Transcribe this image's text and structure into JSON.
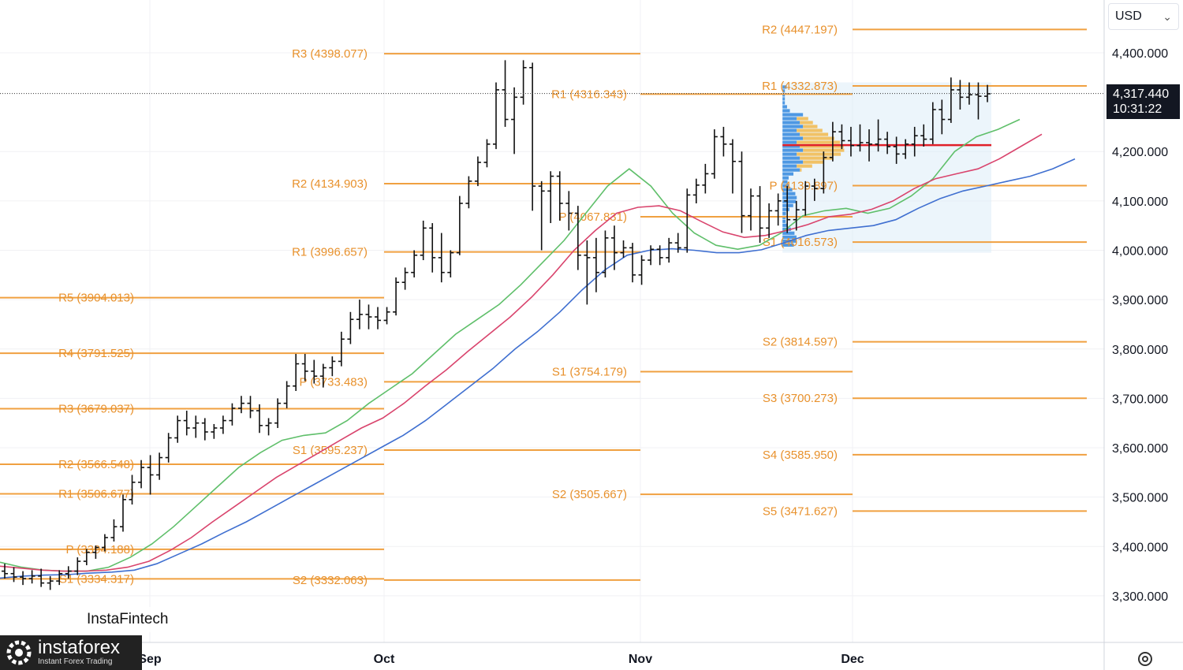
{
  "toolbar": {
    "currency": "USD"
  },
  "price_tag": {
    "price": "4,317.440",
    "countdown": "10:31:22"
  },
  "watermarks": {
    "chart_brand": "InstaFintech",
    "logo_text": "instaforex",
    "logo_tagline": "Instant Forex Trading"
  },
  "chart_data": {
    "type": "bar",
    "title": "",
    "xlabel": "",
    "ylabel": "",
    "ylim": [
      3260,
      4490
    ],
    "y_ticks": [
      {
        "value": 3300,
        "label": "3,300.000"
      },
      {
        "value": 3400,
        "label": "3,400.000"
      },
      {
        "value": 3500,
        "label": "3,500.000"
      },
      {
        "value": 3600,
        "label": "3,600.000"
      },
      {
        "value": 3700,
        "label": "3,700.000"
      },
      {
        "value": 3800,
        "label": "3,800.000"
      },
      {
        "value": 3900,
        "label": "3,900.000"
      },
      {
        "value": 4000,
        "label": "4,000.000"
      },
      {
        "value": 4100,
        "label": "4,100.000"
      },
      {
        "value": 4200,
        "label": "4,200.000"
      },
      {
        "value": 4400,
        "label": "4,400.000"
      }
    ],
    "x_ticks": [
      "Sep",
      "Oct",
      "Nov",
      "Dec"
    ],
    "current_price": 4317.44,
    "pivot_periods": [
      {
        "period": "Sep",
        "levels": [
          {
            "name": "R5",
            "value": 3904.013,
            "label": "R5 (3904.013)"
          },
          {
            "name": "R4",
            "value": 3791.525,
            "label": "R4 (3791.525)"
          },
          {
            "name": "R3",
            "value": 3679.037,
            "label": "R3 (3679.037)"
          },
          {
            "name": "R2",
            "value": 3566.548,
            "label": "R2 (3566.548)"
          },
          {
            "name": "R1",
            "value": 3506.677,
            "label": "R1 (3506.677)"
          },
          {
            "name": "P",
            "value": 3394.188,
            "label": "P (3394.188)"
          },
          {
            "name": "S1",
            "value": 3334.317,
            "label": "S1 (3334.317)"
          }
        ]
      },
      {
        "period": "Oct",
        "levels": [
          {
            "name": "R3",
            "value": 4398.077,
            "label": "R3 (4398.077)"
          },
          {
            "name": "R2",
            "value": 4134.903,
            "label": "R2 (4134.903)"
          },
          {
            "name": "R1",
            "value": 3996.657,
            "label": "R1 (3996.657)"
          },
          {
            "name": "P",
            "value": 3733.483,
            "label": "P (3733.483)"
          },
          {
            "name": "S1",
            "value": 3595.237,
            "label": "S1 (3595.237)"
          },
          {
            "name": "S2",
            "value": 3332.063,
            "label": "S2 (3332.063)"
          }
        ]
      },
      {
        "period": "Nov",
        "levels": [
          {
            "name": "R1",
            "value": 4316.343,
            "label": "R1 (4316.343)"
          },
          {
            "name": "P",
            "value": 4067.831,
            "label": "P (4067.831)"
          },
          {
            "name": "S1",
            "value": 3754.179,
            "label": "S1 (3754.179)"
          },
          {
            "name": "S2",
            "value": 3505.667,
            "label": "S2 (3505.667)"
          }
        ]
      },
      {
        "period": "Dec",
        "levels": [
          {
            "name": "R2",
            "value": 4447.197,
            "label": "R2 (4447.197)"
          },
          {
            "name": "R1",
            "value": 4332.873,
            "label": "R1 (4332.873)"
          },
          {
            "name": "P",
            "value": 4130.897,
            "label": "P (4130.897)"
          },
          {
            "name": "S1",
            "value": 4016.573,
            "label": "S1 (4016.573)"
          },
          {
            "name": "S2",
            "value": 3814.597,
            "label": "S2 (3814.597)"
          },
          {
            "name": "S3",
            "value": 3700.273,
            "label": "S3 (3700.273)"
          },
          {
            "name": "S4",
            "value": 3585.95,
            "label": "S4 (3585.950)"
          },
          {
            "name": "S5",
            "value": 3471.627,
            "label": "S5 (3471.627)"
          }
        ]
      }
    ],
    "bars": [
      [
        3350,
        3365,
        3335,
        3345
      ],
      [
        3345,
        3358,
        3328,
        3338
      ],
      [
        3338,
        3350,
        3322,
        3335
      ],
      [
        3335,
        3352,
        3325,
        3340
      ],
      [
        3340,
        3355,
        3318,
        3326
      ],
      [
        3326,
        3340,
        3312,
        3330
      ],
      [
        3330,
        3352,
        3322,
        3345
      ],
      [
        3345,
        3360,
        3335,
        3350
      ],
      [
        3350,
        3378,
        3342,
        3370
      ],
      [
        3370,
        3395,
        3362,
        3388
      ],
      [
        3388,
        3402,
        3375,
        3398
      ],
      [
        3398,
        3425,
        3390,
        3418
      ],
      [
        3418,
        3455,
        3410,
        3440
      ],
      [
        3440,
        3505,
        3430,
        3495
      ],
      [
        3495,
        3545,
        3485,
        3530
      ],
      [
        3530,
        3575,
        3518,
        3560
      ],
      [
        3560,
        3585,
        3505,
        3545
      ],
      [
        3545,
        3590,
        3535,
        3580
      ],
      [
        3580,
        3630,
        3570,
        3620
      ],
      [
        3620,
        3665,
        3610,
        3655
      ],
      [
        3655,
        3675,
        3625,
        3640
      ],
      [
        3640,
        3665,
        3620,
        3650
      ],
      [
        3650,
        3660,
        3615,
        3632
      ],
      [
        3632,
        3648,
        3618,
        3640
      ],
      [
        3640,
        3665,
        3628,
        3655
      ],
      [
        3655,
        3690,
        3645,
        3680
      ],
      [
        3680,
        3705,
        3670,
        3690
      ],
      [
        3690,
        3705,
        3660,
        3675
      ],
      [
        3675,
        3688,
        3630,
        3645
      ],
      [
        3645,
        3660,
        3625,
        3650
      ],
      [
        3650,
        3700,
        3640,
        3690
      ],
      [
        3690,
        3735,
        3680,
        3725
      ],
      [
        3725,
        3790,
        3715,
        3770
      ],
      [
        3770,
        3790,
        3735,
        3755
      ],
      [
        3755,
        3778,
        3730,
        3745
      ],
      [
        3745,
        3770,
        3722,
        3762
      ],
      [
        3762,
        3785,
        3745,
        3775
      ],
      [
        3775,
        3835,
        3765,
        3820
      ],
      [
        3820,
        3875,
        3810,
        3860
      ],
      [
        3860,
        3900,
        3840,
        3870
      ],
      [
        3870,
        3890,
        3840,
        3865
      ],
      [
        3865,
        3885,
        3840,
        3858
      ],
      [
        3858,
        3885,
        3850,
        3875
      ],
      [
        3875,
        3945,
        3868,
        3935
      ],
      [
        3935,
        3965,
        3920,
        3955
      ],
      [
        3955,
        4000,
        3945,
        3990
      ],
      [
        3990,
        4060,
        3980,
        4045
      ],
      [
        4045,
        4055,
        3955,
        3985
      ],
      [
        3985,
        4035,
        3935,
        3955
      ],
      [
        3955,
        4000,
        3945,
        3995
      ],
      [
        3995,
        4110,
        3990,
        4095
      ],
      [
        4095,
        4150,
        4085,
        4140
      ],
      [
        4140,
        4190,
        4130,
        4178
      ],
      [
        4178,
        4225,
        4168,
        4215
      ],
      [
        4215,
        4340,
        4205,
        4325
      ],
      [
        4325,
        4385,
        4250,
        4265
      ],
      [
        4265,
        4330,
        4195,
        4310
      ],
      [
        4310,
        4385,
        4295,
        4370
      ],
      [
        4370,
        4380,
        4080,
        4130
      ],
      [
        4130,
        4140,
        4000,
        4120
      ],
      [
        4120,
        4160,
        4055,
        4150
      ],
      [
        4150,
        4160,
        4060,
        4095
      ],
      [
        4095,
        4120,
        4040,
        4075
      ],
      [
        4075,
        4090,
        3960,
        3990
      ],
      [
        3990,
        4020,
        3890,
        3985
      ],
      [
        3985,
        4025,
        3915,
        3955
      ],
      [
        3955,
        4040,
        3945,
        4025
      ],
      [
        4025,
        4050,
        3960,
        3995
      ],
      [
        3995,
        4020,
        3985,
        4005
      ],
      [
        4005,
        4015,
        3935,
        3950
      ],
      [
        3950,
        3990,
        3930,
        3980
      ],
      [
        3980,
        4010,
        3970,
        4002
      ],
      [
        4002,
        4010,
        3970,
        3985
      ],
      [
        3985,
        4025,
        3975,
        4015
      ],
      [
        4015,
        4035,
        3995,
        4005
      ],
      [
        4005,
        4125,
        3995,
        4112
      ],
      [
        4112,
        4145,
        4095,
        4132
      ],
      [
        4132,
        4175,
        4115,
        4155
      ],
      [
        4155,
        4245,
        4145,
        4230
      ],
      [
        4230,
        4250,
        4190,
        4215
      ],
      [
        4215,
        4225,
        4115,
        4180
      ],
      [
        4180,
        4200,
        4035,
        4070
      ],
      [
        4070,
        4125,
        4040,
        4110
      ],
      [
        4110,
        4130,
        4015,
        4045
      ],
      [
        4045,
        4095,
        4025,
        4080
      ],
      [
        4080,
        4115,
        4050,
        4100
      ],
      [
        4100,
        4130,
        4035,
        4062
      ],
      [
        4062,
        4100,
        4040,
        4082
      ],
      [
        4082,
        4140,
        4070,
        4130
      ],
      [
        4130,
        4145,
        4100,
        4125
      ],
      [
        4125,
        4200,
        4115,
        4188
      ],
      [
        4188,
        4260,
        4180,
        4240
      ],
      [
        4240,
        4255,
        4205,
        4222
      ],
      [
        4222,
        4250,
        4190,
        4212
      ],
      [
        4212,
        4255,
        4200,
        4218
      ],
      [
        4218,
        4245,
        4180,
        4215
      ],
      [
        4215,
        4265,
        4200,
        4225
      ],
      [
        4225,
        4240,
        4195,
        4210
      ],
      [
        4210,
        4230,
        4175,
        4195
      ],
      [
        4195,
        4225,
        4185,
        4215
      ],
      [
        4215,
        4250,
        4190,
        4232
      ],
      [
        4232,
        4255,
        4210,
        4225
      ],
      [
        4225,
        4300,
        4215,
        4285
      ],
      [
        4285,
        4305,
        4235,
        4265
      ],
      [
        4265,
        4350,
        4258,
        4325
      ],
      [
        4325,
        4345,
        4285,
        4310
      ],
      [
        4310,
        4340,
        4295,
        4315
      ],
      [
        4315,
        4340,
        4265,
        4312
      ],
      [
        4312,
        4335,
        4300,
        4317
      ]
    ],
    "series": [
      {
        "color": "#5fbf6a",
        "values": [
          3368,
          3358,
          3352,
          3350,
          3350,
          3358,
          3378,
          3405,
          3440,
          3480,
          3520,
          3560,
          3590,
          3615,
          3625,
          3630,
          3655,
          3690,
          3720,
          3750,
          3790,
          3830,
          3860,
          3890,
          3930,
          3975,
          4020,
          4075,
          4130,
          4165,
          4130,
          4075,
          4035,
          4010,
          4002,
          4010,
          4035,
          4070,
          4080,
          4085,
          4075,
          4085,
          4110,
          4145,
          4200,
          4230,
          4245,
          4265
        ]
      },
      {
        "color": "#d9446d",
        "values": [
          3360,
          3356,
          3352,
          3350,
          3350,
          3352,
          3358,
          3370,
          3392,
          3418,
          3450,
          3480,
          3510,
          3540,
          3565,
          3590,
          3615,
          3640,
          3660,
          3690,
          3725,
          3758,
          3795,
          3830,
          3865,
          3905,
          3950,
          4000,
          4040,
          4075,
          4087,
          4090,
          4080,
          4058,
          4037,
          4026,
          4030,
          4040,
          4052,
          4068,
          4073,
          4083,
          4100,
          4125,
          4145,
          4155,
          4165,
          4185,
          4210,
          4235
        ]
      },
      {
        "color": "#3f6fd0",
        "values": [
          3336,
          3340,
          3342,
          3343,
          3346,
          3348,
          3352,
          3365,
          3385,
          3405,
          3428,
          3450,
          3475,
          3500,
          3525,
          3550,
          3575,
          3600,
          3625,
          3655,
          3690,
          3725,
          3760,
          3800,
          3835,
          3875,
          3920,
          3960,
          3990,
          4000,
          4003,
          4000,
          3995,
          3995,
          4001,
          4015,
          4030,
          4040,
          4045,
          4050,
          4062,
          4085,
          4105,
          4120,
          4130,
          4140,
          4150,
          4165,
          4185
        ]
      }
    ],
    "volume_profile": {
      "poc": 4213
    }
  }
}
